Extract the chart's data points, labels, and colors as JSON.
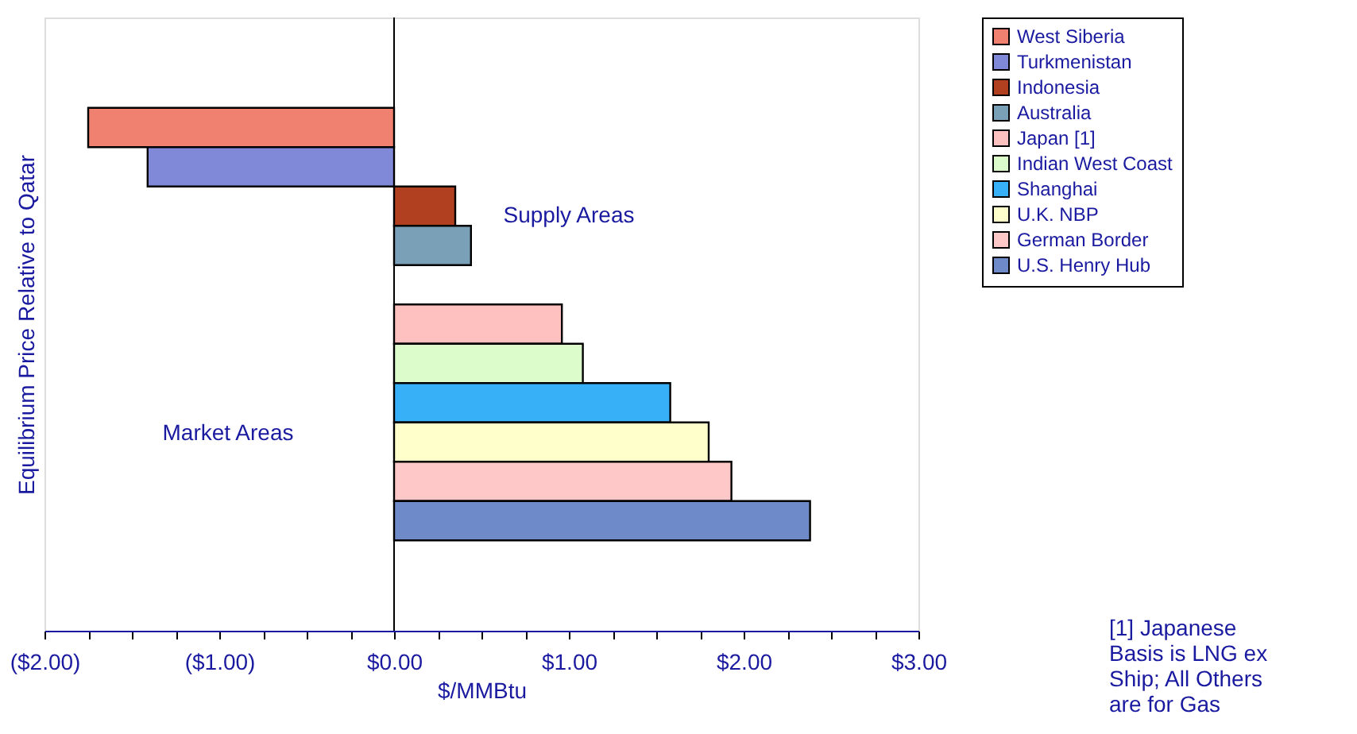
{
  "chart_data": {
    "type": "bar",
    "orientation": "horizontal",
    "xlabel": "$/MMBtu",
    "ylabel": "Equilibrium Price Relative to Qatar",
    "categories": [
      null,
      null,
      null,
      null,
      null,
      null,
      null,
      null,
      null,
      null,
      null,
      null,
      null,
      null,
      null
    ],
    "series": [
      {
        "name": "West Siberia",
        "color": "#f08070",
        "values": [
          null,
          null,
          -1.75,
          null,
          null,
          null,
          null,
          null,
          null,
          null,
          null,
          null,
          null,
          null,
          null
        ]
      },
      {
        "name": "Turkmenistan",
        "color": "#8088d8",
        "values": [
          null,
          null,
          null,
          -1.41,
          null,
          null,
          null,
          null,
          null,
          null,
          null,
          null,
          null,
          null,
          null
        ]
      },
      {
        "name": "Indonesia",
        "color": "#b04020",
        "values": [
          null,
          null,
          null,
          null,
          0.35,
          null,
          null,
          null,
          null,
          null,
          null,
          null,
          null,
          null,
          null
        ]
      },
      {
        "name": "Australia",
        "color": "#7aa0b8",
        "values": [
          null,
          null,
          null,
          null,
          null,
          0.44,
          null,
          null,
          null,
          null,
          null,
          null,
          null,
          null,
          null
        ]
      },
      {
        "name": "Japan [1]",
        "color": "#ffc0c0",
        "values": [
          null,
          null,
          null,
          null,
          null,
          null,
          null,
          0.96,
          null,
          null,
          null,
          null,
          null,
          null,
          null
        ]
      },
      {
        "name": "Indian West Coast",
        "color": "#ddfccc",
        "values": [
          null,
          null,
          null,
          null,
          null,
          null,
          null,
          null,
          1.08,
          null,
          null,
          null,
          null,
          null,
          null
        ]
      },
      {
        "name": "Shanghai",
        "color": "#38b0f8",
        "values": [
          null,
          null,
          null,
          null,
          null,
          null,
          null,
          null,
          null,
          1.58,
          null,
          null,
          null,
          null,
          null
        ]
      },
      {
        "name": "U.K. NBP",
        "color": "#ffffcc",
        "values": [
          null,
          null,
          null,
          null,
          null,
          null,
          null,
          null,
          null,
          null,
          1.8,
          null,
          null,
          null,
          null
        ]
      },
      {
        "name": "German Border",
        "color": "#ffc8c8",
        "values": [
          null,
          null,
          null,
          null,
          null,
          null,
          null,
          null,
          null,
          null,
          null,
          1.93,
          null,
          null,
          null
        ]
      },
      {
        "name": "U.S. Henry Hub",
        "color": "#6e8ac8",
        "values": [
          null,
          null,
          null,
          null,
          null,
          null,
          null,
          null,
          null,
          null,
          null,
          null,
          2.38,
          null,
          null
        ]
      }
    ],
    "xlim": [
      -2,
      3
    ],
    "xticks": [
      {
        "value": -2,
        "label": "($2.00)"
      },
      {
        "value": -1.75,
        "label": null
      },
      {
        "value": -1.5,
        "label": null
      },
      {
        "value": -1.25,
        "label": null
      },
      {
        "value": -1,
        "label": "($1.00)"
      },
      {
        "value": -0.75,
        "label": null
      },
      {
        "value": -0.5,
        "label": null
      },
      {
        "value": -0.25,
        "label": null
      },
      {
        "value": 0,
        "label": "$0.00"
      },
      {
        "value": 0.25,
        "label": null
      },
      {
        "value": 0.5,
        "label": null
      },
      {
        "value": 0.75,
        "label": null
      },
      {
        "value": 1,
        "label": "$1.00"
      },
      {
        "value": 1.25,
        "label": null
      },
      {
        "value": 1.5,
        "label": null
      },
      {
        "value": 1.75,
        "label": null
      },
      {
        "value": 2,
        "label": "$2.00"
      },
      {
        "value": 2.25,
        "label": null
      },
      {
        "value": 2.5,
        "label": null
      },
      {
        "value": 2.75,
        "label": null
      },
      {
        "value": 3,
        "label": "$3.00"
      }
    ],
    "ref_lines": [
      {
        "axis": "x",
        "value": 0,
        "color": "#000000"
      }
    ],
    "annotations": [
      "Supply Areas",
      "Market Areas",
      "[1]  Japanese Basis is LNG ex Ship; All Others are for Gas"
    ],
    "legend": "right",
    "tick_labels": "x",
    "grid": false
  }
}
